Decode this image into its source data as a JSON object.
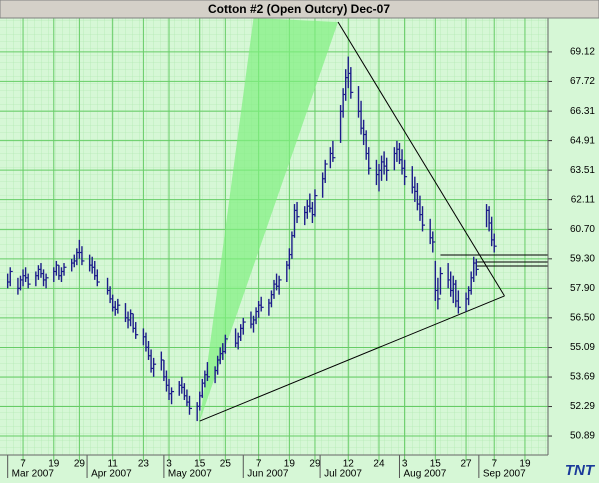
{
  "chart_data": {
    "type": "ohlc",
    "title": "Cotton #2 (Open Outcry) Dec-07",
    "logo": "TNT",
    "color": "#1c1c8a",
    "background": "#d6f7d6",
    "grid_color": "#66cc66",
    "fan_color": "#7ff07f",
    "line_color": "#000000",
    "grid": true,
    "xlim": [
      "2007-02-26",
      "2007-09-28"
    ],
    "ylim": [
      49.99,
      70.73
    ],
    "yticks": [
      {
        "value": 50.89,
        "label": "50.89"
      },
      52.29,
      53.69,
      55.09,
      {
        "value": 56.5,
        "label": "56.50"
      },
      {
        "value": 57.9,
        "label": "57.90"
      },
      {
        "value": 59.3,
        "label": "59.30"
      },
      {
        "value": 60.7,
        "label": "60.70"
      },
      62.11,
      63.51,
      64.91,
      66.31,
      67.72,
      69.12
    ],
    "xticks": [
      {
        "value": "2007-03-07",
        "label": "7"
      },
      {
        "value": "2007-03-19",
        "label": "19"
      },
      {
        "value": "2007-03-29",
        "label": "29"
      },
      {
        "value": "2007-04-11",
        "label": "11"
      },
      {
        "value": "2007-04-23",
        "label": "23"
      },
      {
        "value": "2007-05-03",
        "label": "3"
      },
      {
        "value": "2007-05-15",
        "label": "15"
      },
      {
        "value": "2007-05-25",
        "label": "25"
      },
      {
        "value": "2007-06-07",
        "label": "7"
      },
      {
        "value": "2007-06-19",
        "label": "19"
      },
      {
        "value": "2007-06-29",
        "label": "29"
      },
      {
        "value": "2007-07-12",
        "label": "12"
      },
      {
        "value": "2007-07-24",
        "label": "24"
      },
      {
        "value": "2007-08-03",
        "label": "3"
      },
      {
        "value": "2007-08-15",
        "label": "15"
      },
      {
        "value": "2007-08-27",
        "label": "27"
      },
      {
        "value": "2007-09-07",
        "label": "7"
      },
      {
        "value": "2007-09-19",
        "label": "19"
      }
    ],
    "month_labels": [
      {
        "value": "2007-03-01",
        "label": "Mar 2007"
      },
      {
        "value": "2007-04-01",
        "label": "Apr 2007"
      },
      {
        "value": "2007-05-01",
        "label": "May 2007"
      },
      {
        "value": "2007-06-01",
        "label": "Jun 2007"
      },
      {
        "value": "2007-07-01",
        "label": "Jul 2007"
      },
      {
        "value": "2007-08-01",
        "label": "Aug 2007"
      },
      {
        "value": "2007-09-01",
        "label": "Sep 2007"
      }
    ],
    "x": [
      "2007-03-01",
      "2007-03-02",
      "2007-03-05",
      "2007-03-06",
      "2007-03-07",
      "2007-03-08",
      "2007-03-09",
      "2007-03-12",
      "2007-03-13",
      "2007-03-14",
      "2007-03-15",
      "2007-03-16",
      "2007-03-19",
      "2007-03-20",
      "2007-03-21",
      "2007-03-22",
      "2007-03-23",
      "2007-03-26",
      "2007-03-27",
      "2007-03-28",
      "2007-03-29",
      "2007-03-30",
      "2007-04-02",
      "2007-04-03",
      "2007-04-04",
      "2007-04-05",
      "2007-04-09",
      "2007-04-10",
      "2007-04-11",
      "2007-04-12",
      "2007-04-13",
      "2007-04-16",
      "2007-04-17",
      "2007-04-18",
      "2007-04-19",
      "2007-04-20",
      "2007-04-23",
      "2007-04-24",
      "2007-04-25",
      "2007-04-26",
      "2007-04-27",
      "2007-04-30",
      "2007-05-01",
      "2007-05-02",
      "2007-05-03",
      "2007-05-04",
      "2007-05-07",
      "2007-05-08",
      "2007-05-09",
      "2007-05-10",
      "2007-05-11",
      "2007-05-14",
      "2007-05-15",
      "2007-05-16",
      "2007-05-17",
      "2007-05-18",
      "2007-05-21",
      "2007-05-22",
      "2007-05-23",
      "2007-05-24",
      "2007-05-25",
      "2007-05-29",
      "2007-05-30",
      "2007-05-31",
      "2007-06-01",
      "2007-06-04",
      "2007-06-05",
      "2007-06-06",
      "2007-06-07",
      "2007-06-08",
      "2007-06-11",
      "2007-06-12",
      "2007-06-13",
      "2007-06-14",
      "2007-06-15",
      "2007-06-18",
      "2007-06-19",
      "2007-06-20",
      "2007-06-21",
      "2007-06-22",
      "2007-06-25",
      "2007-06-26",
      "2007-06-27",
      "2007-06-28",
      "2007-06-29",
      "2007-07-02",
      "2007-07-03",
      "2007-07-05",
      "2007-07-06",
      "2007-07-09",
      "2007-07-10",
      "2007-07-11",
      "2007-07-12",
      "2007-07-13",
      "2007-07-16",
      "2007-07-17",
      "2007-07-18",
      "2007-07-19",
      "2007-07-20",
      "2007-07-23",
      "2007-07-24",
      "2007-07-25",
      "2007-07-26",
      "2007-07-27",
      "2007-07-30",
      "2007-07-31",
      "2007-08-01",
      "2007-08-02",
      "2007-08-03",
      "2007-08-06",
      "2007-08-07",
      "2007-08-08",
      "2007-08-09",
      "2007-08-10",
      "2007-08-13",
      "2007-08-14",
      "2007-08-15",
      "2007-08-16",
      "2007-08-17",
      "2007-08-20",
      "2007-08-21",
      "2007-08-22",
      "2007-08-23",
      "2007-08-24",
      "2007-08-27",
      "2007-08-28",
      "2007-08-29",
      "2007-08-30",
      "2007-08-31",
      "2007-09-04",
      "2007-09-05",
      "2007-09-06",
      "2007-09-07"
    ],
    "high": [
      58.6,
      58.9,
      58.4,
      58.5,
      58.8,
      58.9,
      58.6,
      58.7,
      59.0,
      59.1,
      58.8,
      58.6,
      58.9,
      59.2,
      59.0,
      58.9,
      59.1,
      59.3,
      59.5,
      59.8,
      60.2,
      59.9,
      59.5,
      59.4,
      59.2,
      58.8,
      58.4,
      58.0,
      57.6,
      57.3,
      57.4,
      57.2,
      56.8,
      56.9,
      56.7,
      56.3,
      56.0,
      55.8,
      55.4,
      55.0,
      54.6,
      54.9,
      54.5,
      54.0,
      53.6,
      53.2,
      53.5,
      53.7,
      53.4,
      53.1,
      52.8,
      52.5,
      53.0,
      53.6,
      54.0,
      54.4,
      54.2,
      54.7,
      55.1,
      55.3,
      55.7,
      56.0,
      55.8,
      56.2,
      56.5,
      56.8,
      56.6,
      57.0,
      57.3,
      57.5,
      57.4,
      57.8,
      58.3,
      58.6,
      58.5,
      59.2,
      59.8,
      60.6,
      61.9,
      62.0,
      61.8,
      62.1,
      62.4,
      62.0,
      62.6,
      63.4,
      64.0,
      64.6,
      64.9,
      66.6,
      67.4,
      68.3,
      68.9,
      68.4,
      67.5,
      66.8,
      65.9,
      65.4,
      64.6,
      64.0,
      63.8,
      64.2,
      64.4,
      64.1,
      64.6,
      64.9,
      64.8,
      64.5,
      64.0,
      63.7,
      63.2,
      62.9,
      62.3,
      61.8,
      61.2,
      60.6,
      59.2,
      58.4,
      58.9,
      59.1,
      58.7,
      58.5,
      58.3,
      57.8,
      57.7,
      58.0,
      58.7,
      59.4,
      59.3,
      61.9,
      61.8,
      61.3,
      60.5
    ],
    "low": [
      57.9,
      58.0,
      57.6,
      57.8,
      58.0,
      58.2,
      57.9,
      58.0,
      58.3,
      58.4,
      58.0,
      57.9,
      58.2,
      58.5,
      58.3,
      58.2,
      58.5,
      58.7,
      58.9,
      59.0,
      59.3,
      59.0,
      58.7,
      58.6,
      58.3,
      58.0,
      57.6,
      57.2,
      56.8,
      56.6,
      56.7,
      56.3,
      56.0,
      56.1,
      55.8,
      55.5,
      55.2,
      54.9,
      54.5,
      53.9,
      53.7,
      54.0,
      53.5,
      53.0,
      52.6,
      52.4,
      52.8,
      52.9,
      52.6,
      52.3,
      51.9,
      51.6,
      52.1,
      52.7,
      53.2,
      53.5,
      53.4,
      53.8,
      54.3,
      54.5,
      54.8,
      55.1,
      55.0,
      55.4,
      55.7,
      56.0,
      55.8,
      56.2,
      56.5,
      56.8,
      56.6,
      57.0,
      57.4,
      57.8,
      57.6,
      58.2,
      58.8,
      59.3,
      60.3,
      61.0,
      60.9,
      61.2,
      61.5,
      61.0,
      61.3,
      62.2,
      62.9,
      63.6,
      63.9,
      64.8,
      66.0,
      66.8,
      67.4,
      66.9,
      66.0,
      65.2,
      64.7,
      64.0,
      63.3,
      62.8,
      62.5,
      63.0,
      63.3,
      63.0,
      63.5,
      63.9,
      63.8,
      63.3,
      62.8,
      62.4,
      62.0,
      61.6,
      61.1,
      60.6,
      60.0,
      59.6,
      57.3,
      56.9,
      57.6,
      57.9,
      57.5,
      57.2,
      57.0,
      56.7,
      56.8,
      57.1,
      57.6,
      58.2,
      58.5,
      60.8,
      60.6,
      59.9,
      59.6
    ],
    "close": [
      58.2,
      58.7,
      57.9,
      58.3,
      58.5,
      58.4,
      58.1,
      58.5,
      58.8,
      58.6,
      58.3,
      58.4,
      58.7,
      59.0,
      58.5,
      58.7,
      58.9,
      59.1,
      59.2,
      59.6,
      59.6,
      59.2,
      59.0,
      58.9,
      58.5,
      58.2,
      57.8,
      57.4,
      57.0,
      56.9,
      57.1,
      56.5,
      56.4,
      56.7,
      56.0,
      55.7,
      55.6,
      55.1,
      54.7,
      54.1,
      54.3,
      54.5,
      53.7,
      53.3,
      52.9,
      53.0,
      53.3,
      53.2,
      52.8,
      52.5,
      52.2,
      52.3,
      52.8,
      53.4,
      53.8,
      53.7,
      54.0,
      54.5,
      54.8,
      54.9,
      55.5,
      55.3,
      55.6,
      56.0,
      56.3,
      56.2,
      56.4,
      56.8,
      57.1,
      57.0,
      57.2,
      57.6,
      58.1,
      58.0,
      58.3,
      59.0,
      59.5,
      60.4,
      61.6,
      61.3,
      61.5,
      61.8,
      61.7,
      61.4,
      62.3,
      63.1,
      63.8,
      64.3,
      64.1,
      66.3,
      67.1,
      67.9,
      68.1,
      67.2,
      66.3,
      65.5,
      65.2,
      64.3,
      63.6,
      63.3,
      63.5,
      63.9,
      63.7,
      63.5,
      64.3,
      64.5,
      64.0,
      63.6,
      63.2,
      62.7,
      62.5,
      61.9,
      61.4,
      60.9,
      60.3,
      60.1,
      57.8,
      57.4,
      58.6,
      58.3,
      57.8,
      58.1,
      57.3,
      57.0,
      57.4,
      57.8,
      58.4,
      59.1,
      58.8,
      61.6,
      61.0,
      60.2,
      59.9
    ],
    "fan": {
      "x": [
        "2007-05-15",
        "2007-06-05",
        "2007-07-08"
      ],
      "y": [
        51.6,
        70.73,
        70.54
      ]
    },
    "trendlines": [
      {
        "x": [
          "2007-05-15",
          "2007-09-11"
        ],
        "y": [
          51.6,
          57.54
        ]
      },
      {
        "x": [
          "2007-07-08",
          "2007-09-11"
        ],
        "y": [
          70.54,
          57.54
        ]
      }
    ],
    "levels": [
      {
        "x": [
          "2007-08-17",
          "2007-09-28"
        ],
        "y": 59.48
      },
      {
        "x": [
          "2007-08-31",
          "2007-09-28"
        ],
        "y": 59.15
      },
      {
        "x": [
          "2007-08-31",
          "2007-09-28"
        ],
        "y": 58.96
      }
    ]
  }
}
